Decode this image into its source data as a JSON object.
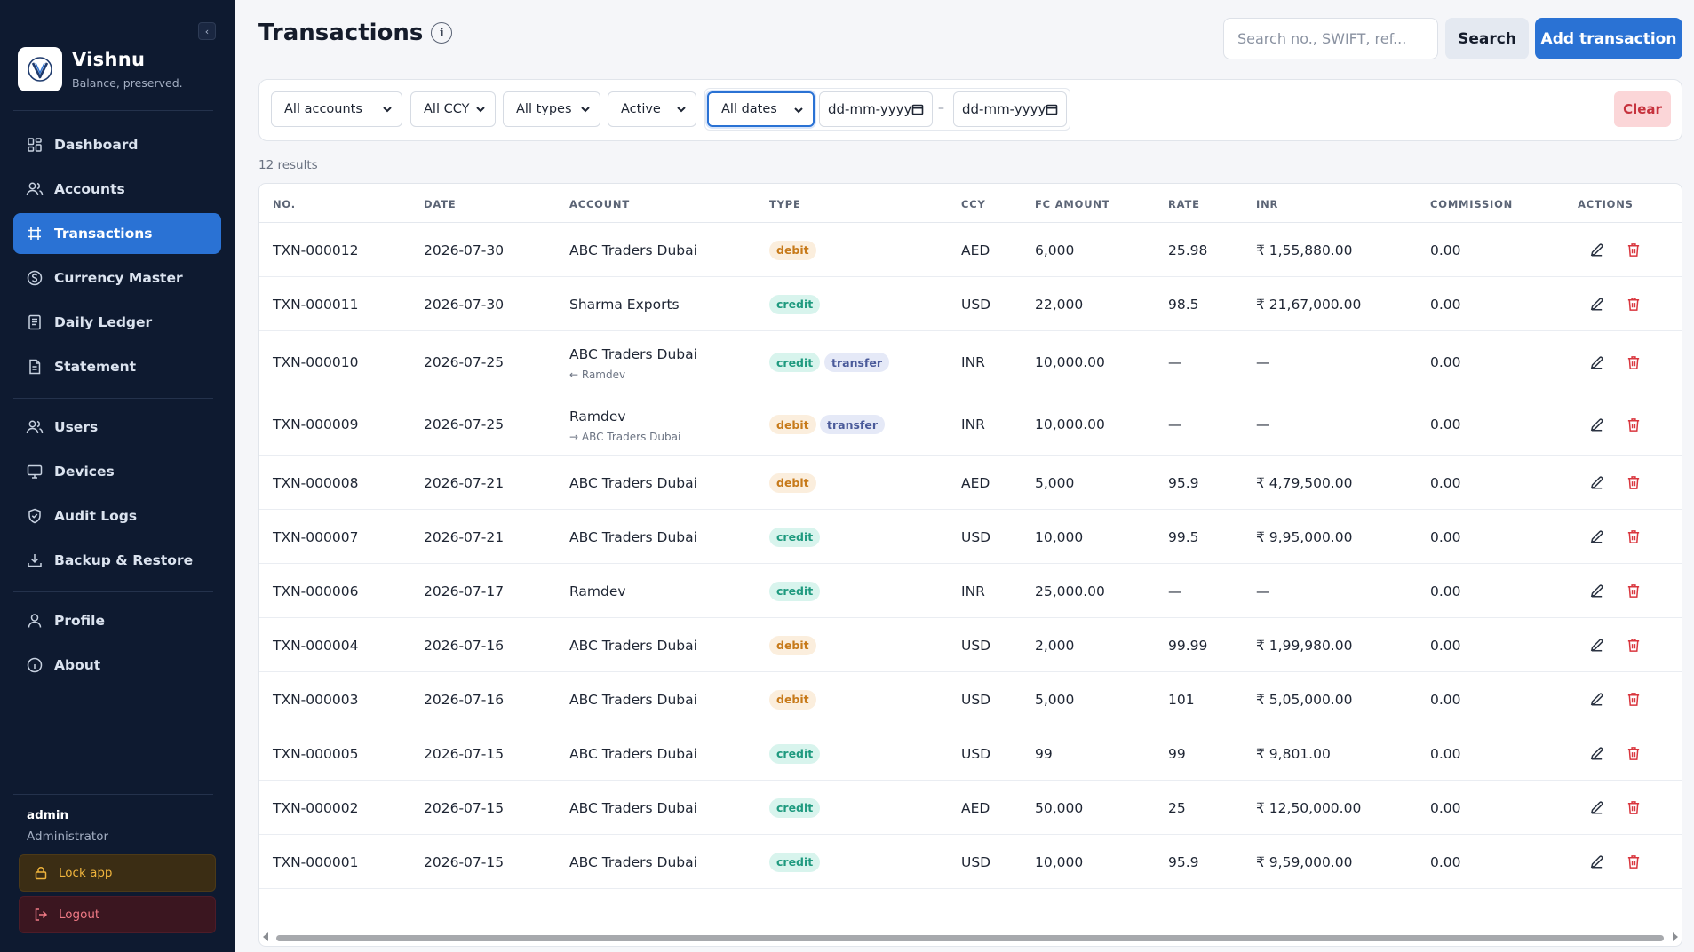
{
  "app": {
    "name": "Vishnu",
    "tagline": "Balance, preserved.",
    "logo_icon": "v-shield-logo"
  },
  "sidebar": {
    "collapse_icon": "chevron-left-icon",
    "items": [
      {
        "label": "Dashboard",
        "icon": "grid-icon",
        "active": false
      },
      {
        "label": "Accounts",
        "icon": "users-icon",
        "active": false
      },
      {
        "label": "Transactions",
        "icon": "transactions-icon",
        "active": true
      },
      {
        "label": "Currency Master",
        "icon": "currency-icon",
        "active": false
      },
      {
        "label": "Daily Ledger",
        "icon": "ledger-icon",
        "active": false
      },
      {
        "label": "Statement",
        "icon": "document-icon",
        "active": false
      },
      {
        "label": "Users",
        "icon": "users-icon",
        "active": false
      },
      {
        "label": "Devices",
        "icon": "monitor-icon",
        "active": false
      },
      {
        "label": "Audit Logs",
        "icon": "shield-icon",
        "active": false
      },
      {
        "label": "Backup & Restore",
        "icon": "download-icon",
        "active": false
      },
      {
        "label": "Profile",
        "icon": "user-icon",
        "active": false
      },
      {
        "label": "About",
        "icon": "info-icon",
        "active": false
      }
    ],
    "user": {
      "name": "admin",
      "role": "Administrator"
    },
    "lock_label": "Lock app",
    "logout_label": "Logout"
  },
  "header": {
    "title": "Transactions",
    "search_placeholder": "Search no., SWIFT, ref...",
    "search_label": "Search",
    "add_label": "Add transaction"
  },
  "filters": {
    "account": "All accounts",
    "ccy": "All CCY",
    "type": "All types",
    "status": "Active",
    "dates": "All dates",
    "date_from_placeholder": "dd-mm-yyyy",
    "date_to_placeholder": "dd-mm-yyyy",
    "date_separator": "–",
    "clear_label": "Clear"
  },
  "results_text": "12 results",
  "table": {
    "columns": [
      "NO.",
      "DATE",
      "ACCOUNT",
      "TYPE",
      "CCY",
      "FC AMOUNT",
      "RATE",
      "INR",
      "COMMISSION",
      "ACTIONS"
    ],
    "rows": [
      {
        "no": "TXN-000012",
        "date": "2026-07-30",
        "account": "ABC Traders Dubai",
        "sub": "",
        "type": "debit",
        "tag": "",
        "ccy": "AED",
        "fc": "6,000",
        "rate": "25.98",
        "inr": "₹ 1,55,880.00",
        "commission": "0.00"
      },
      {
        "no": "TXN-000011",
        "date": "2026-07-30",
        "account": "Sharma Exports",
        "sub": "",
        "type": "credit",
        "tag": "",
        "ccy": "USD",
        "fc": "22,000",
        "rate": "98.5",
        "inr": "₹ 21,67,000.00",
        "commission": "0.00"
      },
      {
        "no": "TXN-000010",
        "date": "2026-07-25",
        "account": "ABC Traders Dubai",
        "sub": "← Ramdev",
        "type": "credit",
        "tag": "transfer",
        "ccy": "INR",
        "fc": "10,000.00",
        "rate": "—",
        "inr": "—",
        "commission": "0.00"
      },
      {
        "no": "TXN-000009",
        "date": "2026-07-25",
        "account": "Ramdev",
        "sub": "→ ABC Traders Dubai",
        "type": "debit",
        "tag": "transfer",
        "ccy": "INR",
        "fc": "10,000.00",
        "rate": "—",
        "inr": "—",
        "commission": "0.00"
      },
      {
        "no": "TXN-000008",
        "date": "2026-07-21",
        "account": "ABC Traders Dubai",
        "sub": "",
        "type": "debit",
        "tag": "",
        "ccy": "AED",
        "fc": "5,000",
        "rate": "95.9",
        "inr": "₹ 4,79,500.00",
        "commission": "0.00"
      },
      {
        "no": "TXN-000007",
        "date": "2026-07-21",
        "account": "ABC Traders Dubai",
        "sub": "",
        "type": "credit",
        "tag": "",
        "ccy": "USD",
        "fc": "10,000",
        "rate": "99.5",
        "inr": "₹ 9,95,000.00",
        "commission": "0.00"
      },
      {
        "no": "TXN-000006",
        "date": "2026-07-17",
        "account": "Ramdev",
        "sub": "",
        "type": "credit",
        "tag": "",
        "ccy": "INR",
        "fc": "25,000.00",
        "rate": "—",
        "inr": "—",
        "commission": "0.00"
      },
      {
        "no": "TXN-000004",
        "date": "2026-07-16",
        "account": "ABC Traders Dubai",
        "sub": "",
        "type": "debit",
        "tag": "",
        "ccy": "USD",
        "fc": "2,000",
        "rate": "99.99",
        "inr": "₹ 1,99,980.00",
        "commission": "0.00"
      },
      {
        "no": "TXN-000003",
        "date": "2026-07-16",
        "account": "ABC Traders Dubai",
        "sub": "",
        "type": "debit",
        "tag": "",
        "ccy": "USD",
        "fc": "5,000",
        "rate": "101",
        "inr": "₹ 5,05,000.00",
        "commission": "0.00"
      },
      {
        "no": "TXN-000005",
        "date": "2026-07-15",
        "account": "ABC Traders Dubai",
        "sub": "",
        "type": "credit",
        "tag": "",
        "ccy": "USD",
        "fc": "99",
        "rate": "99",
        "inr": "₹ 9,801.00",
        "commission": "0.00"
      },
      {
        "no": "TXN-000002",
        "date": "2026-07-15",
        "account": "ABC Traders Dubai",
        "sub": "",
        "type": "credit",
        "tag": "",
        "ccy": "AED",
        "fc": "50,000",
        "rate": "25",
        "inr": "₹ 12,50,000.00",
        "commission": "0.00"
      },
      {
        "no": "TXN-000001",
        "date": "2026-07-15",
        "account": "ABC Traders Dubai",
        "sub": "",
        "type": "credit",
        "tag": "",
        "ccy": "USD",
        "fc": "10,000",
        "rate": "95.9",
        "inr": "₹ 9,59,000.00",
        "commission": "0.00"
      }
    ]
  },
  "colors": {
    "sidebar_bg": "#0e1a30",
    "accent": "#2a72d4",
    "debit": "#c77a1a",
    "credit": "#1f9a7f",
    "transfer": "#4a5a9a",
    "delete": "#d9363e"
  }
}
